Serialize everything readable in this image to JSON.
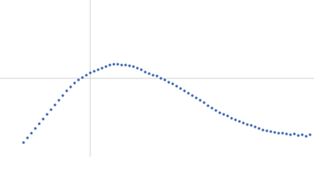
{
  "chart_data": {
    "type": "scatter",
    "color": "#3b66b3",
    "xlim": [
      0,
      400
    ],
    "ylim": [
      0,
      200
    ],
    "xticks": [
      115
    ],
    "yticks": [
      100
    ],
    "grid": true,
    "x": [
      30,
      35,
      40,
      45,
      50,
      55,
      60,
      65,
      70,
      75,
      80,
      85,
      90,
      95,
      100,
      105,
      110,
      115,
      120,
      125,
      130,
      135,
      140,
      145,
      150,
      155,
      160,
      165,
      170,
      175,
      180,
      185,
      190,
      195,
      200,
      205,
      210,
      215,
      220,
      225,
      230,
      235,
      240,
      245,
      250,
      255,
      260,
      265,
      270,
      275,
      280,
      285,
      290,
      295,
      300,
      305,
      310,
      315,
      320,
      325,
      330,
      335,
      340,
      345,
      350,
      355,
      360,
      365,
      370,
      375,
      380,
      385,
      390,
      395
    ],
    "values": [
      18,
      24,
      30,
      36,
      42,
      48,
      54,
      60,
      66,
      72,
      78,
      84,
      89,
      94,
      98,
      101,
      104,
      107,
      109,
      111,
      113,
      115,
      117,
      118,
      118,
      117,
      117,
      116,
      115,
      113,
      111,
      108,
      106,
      104,
      103,
      100,
      98,
      95,
      93,
      90,
      87,
      84,
      81,
      78,
      75,
      72,
      69,
      65,
      62,
      59,
      56,
      54,
      52,
      49,
      47,
      45,
      43,
      41,
      40,
      38,
      36,
      34,
      33,
      32,
      31,
      30,
      30,
      29,
      28,
      29,
      27,
      28,
      26,
      28
    ]
  }
}
